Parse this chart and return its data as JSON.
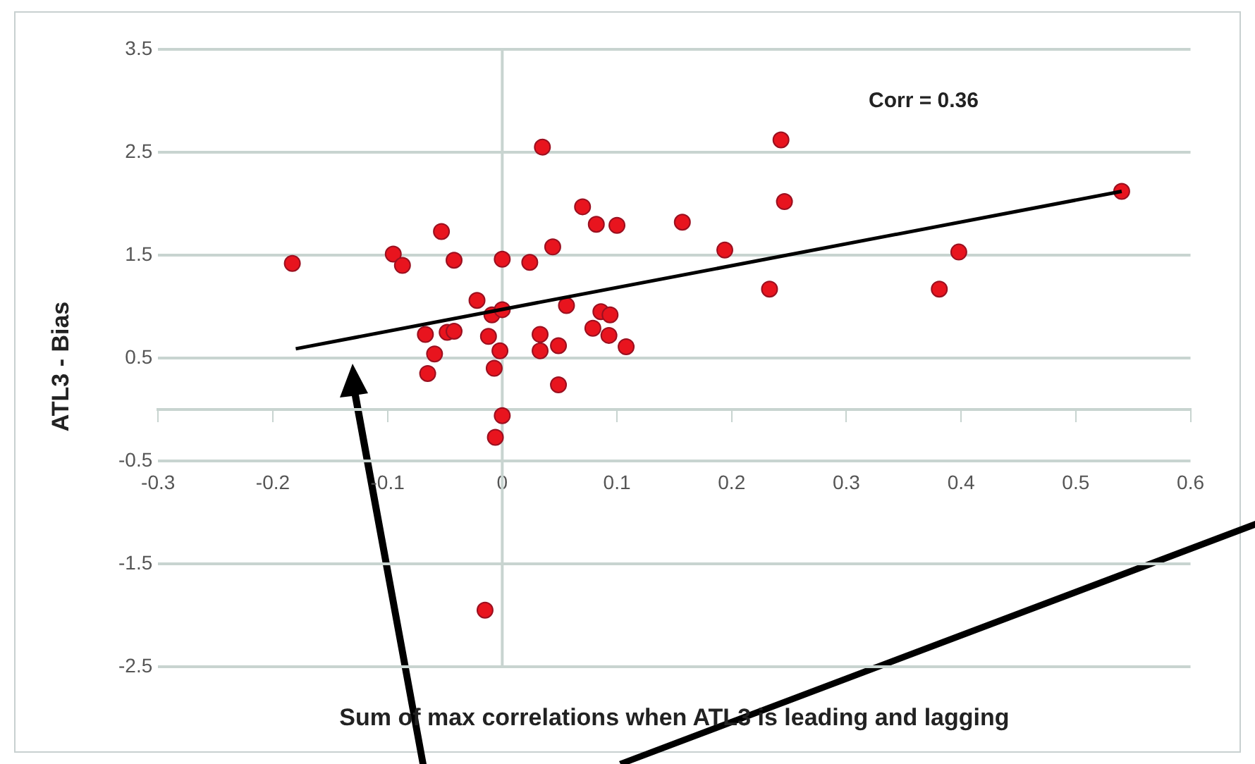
{
  "chart_data": {
    "type": "scatter",
    "xlabel": "Sum of max correlations when ATL3 is leading and lagging",
    "ylabel": "ATL3 - Bias",
    "annotations": [
      "Corr = 0.36"
    ],
    "xlim": [
      -0.3,
      0.6
    ],
    "xticks": [
      -0.3,
      -0.2,
      -0.1,
      0,
      0.1,
      0.2,
      0.3,
      0.4,
      0.5,
      0.6
    ],
    "ylim": [
      -2.5,
      3.5
    ],
    "yticks": [
      -2.5,
      -1.5,
      -0.5,
      0.5,
      1.5,
      2.5,
      3.5
    ],
    "grid": "y",
    "legend": false,
    "ref_lines": [
      {
        "axis": "x",
        "value": 0,
        "color": "#c8d4d0"
      }
    ],
    "series": [
      {
        "type": "scatter",
        "marker": "circle",
        "color": "#e8141e",
        "x": [
          -0.183,
          -0.095,
          -0.087,
          -0.053,
          -0.042,
          0,
          0.024,
          0.044,
          0.035,
          0.07,
          0.082,
          0.1,
          -0.022,
          -0.009,
          0,
          0.056,
          -0.067,
          -0.048,
          -0.042,
          -0.012,
          -0.002,
          -0.007,
          -0.059,
          -0.065,
          0.033,
          0.033,
          0.049,
          0.049,
          0.086,
          0.094,
          0.079,
          0.093,
          0.108,
          0,
          -0.006,
          0.157,
          0.243,
          0.246,
          0.194,
          0.233,
          0.398,
          0.381,
          0.54,
          -0.015
        ],
        "values": [
          1.42,
          1.51,
          1.4,
          1.73,
          1.45,
          1.46,
          1.43,
          1.58,
          2.55,
          1.97,
          1.8,
          1.79,
          1.06,
          0.92,
          0.97,
          1.01,
          0.73,
          0.75,
          0.76,
          0.71,
          0.57,
          0.4,
          0.54,
          0.35,
          0.73,
          0.57,
          0.62,
          0.24,
          0.95,
          0.92,
          0.79,
          0.72,
          0.61,
          -0.06,
          -0.27,
          1.82,
          2.62,
          2.02,
          1.55,
          1.17,
          1.53,
          1.17,
          2.12,
          -1.95
        ]
      },
      {
        "type": "line",
        "color": "#000000",
        "x": [
          -0.18,
          0.54
        ],
        "values": [
          0.59,
          2.12
        ]
      }
    ]
  }
}
